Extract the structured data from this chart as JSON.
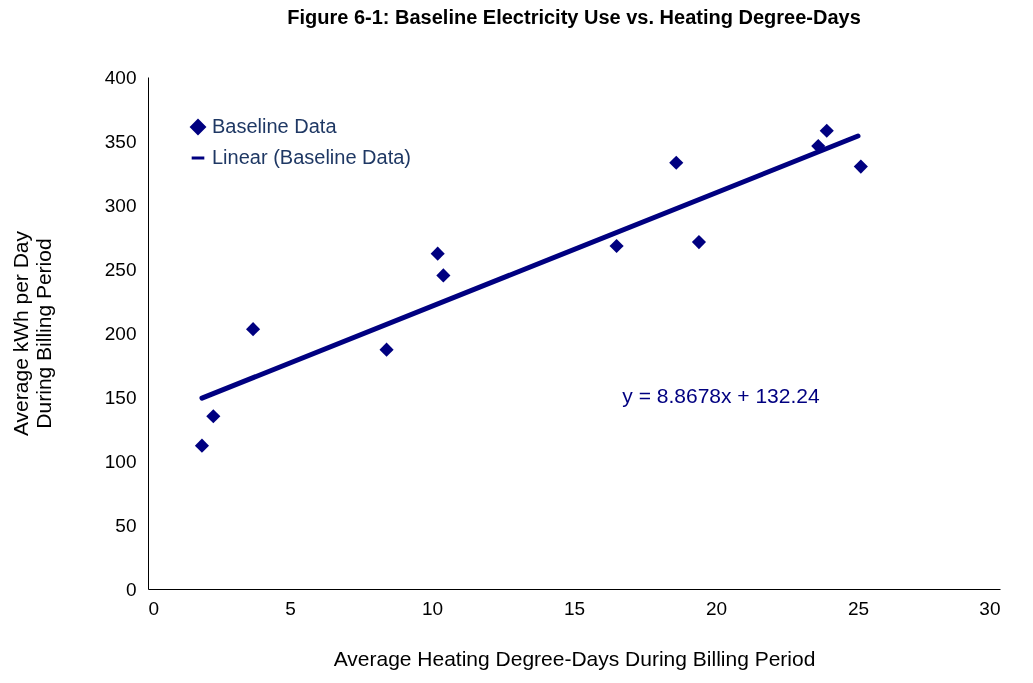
{
  "chart_data": {
    "type": "scatter",
    "title": "Figure 6-1: Baseline Electricity Use vs. Heating Degree-Days",
    "xlabel": "Average Heating Degree-Days During Billing Period",
    "ylabel": "Average kWh per Day\nDuring Billing Period",
    "xlim": [
      0,
      30
    ],
    "xticks": [
      0,
      5,
      10,
      15,
      20,
      25,
      30
    ],
    "ylim": [
      0,
      400
    ],
    "yticks": [
      0,
      50,
      100,
      150,
      200,
      250,
      300,
      350,
      400
    ],
    "grid": false,
    "legend": "top left",
    "series": [
      {
        "name": "Baseline Data",
        "marker": "diamond",
        "color": "#000080",
        "x": [
          1.9,
          2.3,
          3.7,
          8.4,
          10.2,
          10.4,
          16.5,
          18.6,
          19.4,
          23.6,
          23.9,
          25.1
        ],
        "values": [
          112,
          135,
          203,
          187,
          262,
          245,
          268,
          333,
          271,
          346,
          358,
          330
        ]
      },
      {
        "name": "Linear (Baseline Data)",
        "type": "line",
        "color": "#000080",
        "x": [
          1.9,
          25
        ],
        "values": [
          149.1,
          353.9
        ]
      }
    ],
    "annotations": [
      "y = 8.8678x + 132.24"
    ]
  }
}
